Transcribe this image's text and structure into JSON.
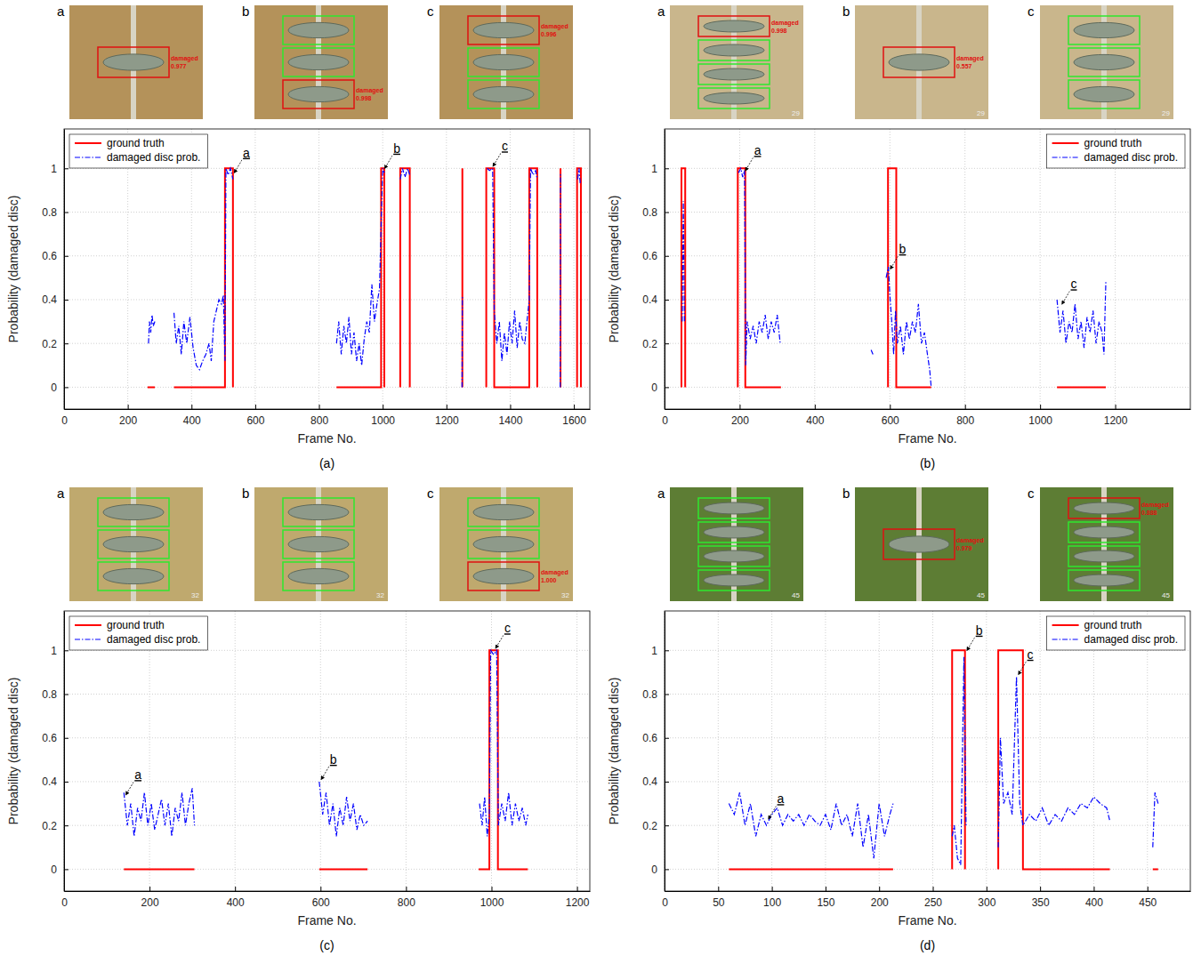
{
  "chart_data": [
    {
      "type": "line",
      "caption": "(a)",
      "xlabel": "Frame No.",
      "ylabel": "Probability (damaged disc)",
      "xlim": [
        0,
        1650
      ],
      "xticks": [
        0,
        200,
        400,
        600,
        800,
        1000,
        1200,
        1400,
        1600
      ],
      "ylim": [
        -0.1,
        1.18
      ],
      "yticks": [
        0,
        0.2,
        0.4,
        0.6,
        0.8,
        1
      ],
      "grid": true,
      "legend": "upper left",
      "series": [
        {
          "name": "ground truth",
          "color": "#ff0000",
          "line_style": "solid",
          "x": [
            262,
            285,
            null,
            345,
            505,
            505,
            530,
            530,
            null,
            855,
            995,
            995,
            1005,
            1005,
            null,
            1055,
            1055,
            1085,
            1085,
            null,
            1250,
            1250,
            null,
            1325,
            1325,
            1350,
            1350,
            1460,
            1460,
            1485,
            1485,
            null,
            1558,
            1558,
            null,
            1610,
            1610,
            1622,
            1622
          ],
          "values": [
            0,
            0,
            null,
            0,
            0,
            1,
            1,
            0,
            null,
            0,
            0,
            1,
            1,
            0,
            null,
            0,
            1,
            1,
            0,
            null,
            0,
            1,
            null,
            0,
            1,
            1,
            0,
            0,
            1,
            1,
            0,
            null,
            0,
            1,
            null,
            0,
            1,
            1,
            0
          ]
        },
        {
          "name": "damaged disc prob.",
          "color": "#0000ff",
          "line_style": "dashdot",
          "x": [
            265,
            268,
            272,
            276,
            280,
            285,
            null,
            345,
            352,
            360,
            368,
            376,
            385,
            395,
            405,
            415,
            425,
            435,
            445,
            455,
            462,
            470,
            478,
            486,
            494,
            500,
            505,
            508,
            515,
            522,
            530,
            null,
            855,
            862,
            870,
            878,
            886,
            894,
            902,
            910,
            918,
            926,
            934,
            942,
            950,
            958,
            966,
            974,
            982,
            990,
            996,
            1000,
            1005,
            null,
            1055,
            1062,
            1070,
            1078,
            1085,
            null,
            1249,
            1250,
            null,
            1328,
            1335,
            1345,
            1350,
            1358,
            1366,
            1374,
            1382,
            1390,
            1398,
            1406,
            1414,
            1422,
            1430,
            1438,
            1446,
            1454,
            1460,
            1464,
            1472,
            1480,
            1485,
            null,
            1557,
            1558,
            null,
            1612,
            1616,
            1620
          ],
          "values": [
            0.2,
            0.3,
            0.25,
            0.33,
            0.28,
            0.3,
            null,
            0.34,
            0.2,
            0.28,
            0.15,
            0.3,
            0.2,
            0.32,
            0.18,
            0.1,
            0.08,
            0.12,
            0.15,
            0.2,
            0.12,
            0.3,
            0.35,
            0.4,
            0.38,
            0.42,
            0.12,
            1,
            0.97,
            1,
            0.95,
            null,
            0.2,
            0.3,
            0.15,
            0.28,
            0.2,
            0.32,
            0.15,
            0.25,
            0.12,
            0.2,
            0.1,
            0.22,
            0.3,
            0.25,
            0.47,
            0.3,
            0.38,
            0.45,
            0.8,
            1,
            0.98,
            null,
            0.95,
            1,
            0.96,
            1,
            0.97,
            null,
            0,
            0.42,
            null,
            1,
            0.99,
            1,
            0.35,
            0.2,
            0.3,
            0.12,
            0.25,
            0.15,
            0.3,
            0.2,
            0.35,
            0.18,
            0.3,
            0.22,
            0.2,
            0.32,
            0.4,
            1,
            0.97,
            0.99,
            0.95,
            null,
            0,
            0.98,
            null,
            0.95,
            1,
            0.93
          ]
        }
      ],
      "annotations": [
        {
          "text": "a",
          "x": 528,
          "y": 0.97
        },
        {
          "text": "b",
          "x": 1000,
          "y": 0.99
        },
        {
          "text": "c",
          "x": 1340,
          "y": 1
        }
      ],
      "insets": [
        {
          "label": "a",
          "detections": [
            {
              "text": "damaged",
              "score": "0.977"
            }
          ]
        },
        {
          "label": "b",
          "detections": [
            null,
            null,
            {
              "text": "damaged",
              "score": "0.998"
            }
          ]
        },
        {
          "label": "c",
          "detections": [
            {
              "text": "damaged",
              "score": "0.996"
            },
            null,
            null
          ]
        }
      ]
    },
    {
      "type": "line",
      "caption": "(b)",
      "xlabel": "Frame No.",
      "ylabel": "Probability (damaged disc)",
      "xlim": [
        0,
        1400
      ],
      "xticks": [
        0,
        200,
        400,
        600,
        800,
        1000,
        1200
      ],
      "ylim": [
        -0.1,
        1.18
      ],
      "yticks": [
        0,
        0.2,
        0.4,
        0.6,
        0.8,
        1
      ],
      "grid": true,
      "legend": "upper right",
      "series": [
        {
          "name": "ground truth",
          "color": "#ff0000",
          "line_style": "solid",
          "x": [
            45,
            45,
            55,
            55,
            null,
            195,
            195,
            215,
            215,
            310,
            null,
            595,
            595,
            617,
            617,
            710,
            null,
            1045,
            1175
          ],
          "values": [
            0,
            1,
            1,
            0,
            null,
            0,
            1,
            1,
            0,
            0,
            null,
            0,
            1,
            1,
            0,
            0,
            null,
            0,
            0
          ]
        },
        {
          "name": "damaged disc prob.",
          "color": "#0000ff",
          "line_style": "dashdot",
          "x": [
            47,
            50,
            53,
            null,
            197,
            203,
            208,
            213,
            216,
            220,
            228,
            236,
            244,
            252,
            260,
            268,
            276,
            284,
            292,
            300,
            308,
            null,
            550,
            555,
            null,
            590,
            596,
            600,
            605,
            610,
            615,
            620,
            628,
            636,
            644,
            652,
            660,
            668,
            676,
            684,
            692,
            700,
            706,
            710,
            null,
            1045,
            1053,
            1061,
            1069,
            1077,
            1085,
            1093,
            1101,
            1109,
            1117,
            1125,
            1133,
            1141,
            1149,
            1157,
            1165,
            1170,
            1175
          ],
          "values": [
            0.3,
            0.85,
            0.3,
            null,
            0.98,
            1,
            0.96,
            0.99,
            0.1,
            0.3,
            0.22,
            0.28,
            0.2,
            0.3,
            0.25,
            0.33,
            0.22,
            0.3,
            0.25,
            0.33,
            0.2,
            null,
            0.17,
            0.15,
            null,
            0.5,
            0.55,
            0.42,
            0.3,
            0.15,
            0.35,
            0.2,
            0.28,
            0.15,
            0.3,
            0.22,
            0.3,
            0.25,
            0.38,
            0.2,
            0.25,
            0.15,
            0.08,
            0,
            null,
            0.4,
            0.25,
            0.35,
            0.2,
            0.3,
            0.25,
            0.38,
            0.22,
            0.3,
            0.18,
            0.32,
            0.25,
            0.35,
            0.2,
            0.3,
            0.25,
            0.15,
            0.48
          ]
        }
      ],
      "annotations": [
        {
          "text": "a",
          "x": 210,
          "y": 0.98
        },
        {
          "text": "b",
          "x": 596,
          "y": 0.53
        },
        {
          "text": "c",
          "x": 1053,
          "y": 0.37
        }
      ],
      "insets": [
        {
          "label": "a",
          "frame_label": "29",
          "detections": [
            {
              "text": "damaged",
              "score": "0.998"
            },
            null,
            null,
            null
          ]
        },
        {
          "label": "b",
          "frame_label": "29",
          "detections": [
            {
              "text": "damaged",
              "score": "0.557"
            }
          ]
        },
        {
          "label": "c",
          "frame_label": "29",
          "detections": [
            null,
            null,
            null
          ]
        }
      ]
    },
    {
      "type": "line",
      "caption": "(c)",
      "xlabel": "Frame No.",
      "ylabel": "Probability (damaged disc)",
      "xlim": [
        0,
        1230
      ],
      "xticks": [
        0,
        200,
        400,
        600,
        800,
        1000,
        1200
      ],
      "ylim": [
        -0.1,
        1.18
      ],
      "yticks": [
        0,
        0.2,
        0.4,
        0.6,
        0.8,
        1
      ],
      "grid": true,
      "legend": "upper left",
      "series": [
        {
          "name": "ground truth",
          "color": "#ff0000",
          "line_style": "solid",
          "x": [
            140,
            305,
            null,
            597,
            710,
            null,
            970,
            995,
            995,
            1015,
            1015,
            1085
          ],
          "values": [
            0,
            0,
            null,
            0,
            0,
            null,
            0,
            0,
            1,
            1,
            0,
            0
          ]
        },
        {
          "name": "damaged disc prob.",
          "color": "#0000ff",
          "line_style": "dashdot",
          "x": [
            140,
            148,
            156,
            164,
            172,
            180,
            188,
            196,
            204,
            212,
            220,
            228,
            236,
            244,
            252,
            260,
            268,
            276,
            284,
            292,
            300,
            305,
            null,
            597,
            605,
            613,
            621,
            629,
            637,
            645,
            653,
            661,
            669,
            677,
            685,
            693,
            701,
            710,
            null,
            972,
            978,
            984,
            990,
            995,
            998,
            1005,
            1012,
            1016,
            1024,
            1032,
            1040,
            1048,
            1056,
            1064,
            1072,
            1080,
            1085
          ],
          "values": [
            0.35,
            0.2,
            0.3,
            0.15,
            0.28,
            0.22,
            0.35,
            0.2,
            0.3,
            0.18,
            0.25,
            0.32,
            0.2,
            0.3,
            0.15,
            0.28,
            0.22,
            0.35,
            0.2,
            0.3,
            0.37,
            0.2,
            null,
            0.4,
            0.25,
            0.35,
            0.2,
            0.3,
            0.15,
            0.28,
            0.2,
            0.33,
            0.22,
            0.3,
            0.18,
            0.25,
            0.2,
            0.22,
            null,
            0.3,
            0.2,
            0.33,
            0.15,
            0.25,
            1,
            0.98,
            1,
            0.2,
            0.3,
            0.22,
            0.35,
            0.2,
            0.3,
            0.22,
            0.28,
            0.2,
            0.25
          ]
        }
      ],
      "annotations": [
        {
          "text": "a",
          "x": 140,
          "y": 0.33
        },
        {
          "text": "b",
          "x": 597,
          "y": 0.4
        },
        {
          "text": "c",
          "x": 1005,
          "y": 1
        }
      ],
      "insets": [
        {
          "label": "a",
          "frame_label": "32",
          "detections": [
            null,
            null,
            null
          ]
        },
        {
          "label": "b",
          "frame_label": "32",
          "detections": [
            null,
            null,
            null
          ]
        },
        {
          "label": "c",
          "frame_label": "32",
          "detections": [
            null,
            null,
            {
              "text": "damaged",
              "score": "1.000"
            }
          ]
        }
      ]
    },
    {
      "type": "line",
      "caption": "(d)",
      "xlabel": "Frame No.",
      "ylabel": "Probability (damaged disc)",
      "xlim": [
        0,
        490
      ],
      "xticks": [
        0,
        50,
        100,
        150,
        200,
        250,
        300,
        350,
        400,
        450
      ],
      "ylim": [
        -0.1,
        1.18
      ],
      "yticks": [
        0,
        0.2,
        0.4,
        0.6,
        0.8,
        1
      ],
      "grid": true,
      "legend": "upper right",
      "series": [
        {
          "name": "ground truth",
          "color": "#ff0000",
          "line_style": "solid",
          "x": [
            60,
            213,
            null,
            268,
            268,
            280,
            280,
            null,
            311,
            311,
            334,
            334,
            415,
            null,
            455,
            460
          ],
          "values": [
            0,
            0,
            null,
            0,
            1,
            1,
            0,
            null,
            0,
            1,
            1,
            0,
            0,
            null,
            0,
            0
          ]
        },
        {
          "name": "damaged disc prob.",
          "color": "#0000ff",
          "line_style": "dashdot",
          "x": [
            60,
            65,
            70,
            75,
            80,
            85,
            90,
            95,
            100,
            105,
            110,
            115,
            120,
            125,
            130,
            135,
            140,
            145,
            150,
            155,
            160,
            165,
            170,
            175,
            180,
            185,
            190,
            195,
            200,
            205,
            210,
            213,
            null,
            268,
            270,
            273,
            276,
            279,
            281,
            null,
            311,
            313,
            316,
            320,
            324,
            328,
            331,
            334,
            340,
            346,
            352,
            358,
            364,
            370,
            376,
            382,
            388,
            394,
            400,
            406,
            412,
            415,
            null,
            455,
            457,
            460
          ],
          "values": [
            0.3,
            0.25,
            0.35,
            0.2,
            0.3,
            0.15,
            0.25,
            0.2,
            0.25,
            0.28,
            0.2,
            0.25,
            0.22,
            0.25,
            0.2,
            0.25,
            0.22,
            0.2,
            0.25,
            0.18,
            0.3,
            0.2,
            0.25,
            0.15,
            0.3,
            0.1,
            0.25,
            0.05,
            0.3,
            0.15,
            0.25,
            0.3,
            null,
            0.15,
            0.2,
            0.05,
            0.02,
            0.97,
            0.2,
            null,
            0.1,
            0.6,
            0.3,
            0.35,
            0.25,
            0.88,
            0.3,
            0.2,
            0.25,
            0.22,
            0.28,
            0.2,
            0.25,
            0.22,
            0.28,
            0.25,
            0.3,
            0.28,
            0.33,
            0.3,
            0.28,
            0.22,
            null,
            0.1,
            0.35,
            0.3
          ]
        }
      ],
      "annotations": [
        {
          "text": "a",
          "x": 95,
          "y": 0.22
        },
        {
          "text": "b",
          "x": 280,
          "y": 0.99
        },
        {
          "text": "c",
          "x": 328,
          "y": 0.88
        }
      ],
      "insets": [
        {
          "label": "a",
          "frame_label": "45",
          "detections": [
            null,
            null,
            null,
            null
          ]
        },
        {
          "label": "b",
          "frame_label": "45",
          "detections": [
            {
              "text": "damaged",
              "score": "0.979"
            }
          ]
        },
        {
          "label": "c",
          "frame_label": "45",
          "detections": [
            {
              "text": "damaged",
              "score": "0.888"
            },
            null,
            null,
            null
          ]
        }
      ]
    }
  ]
}
